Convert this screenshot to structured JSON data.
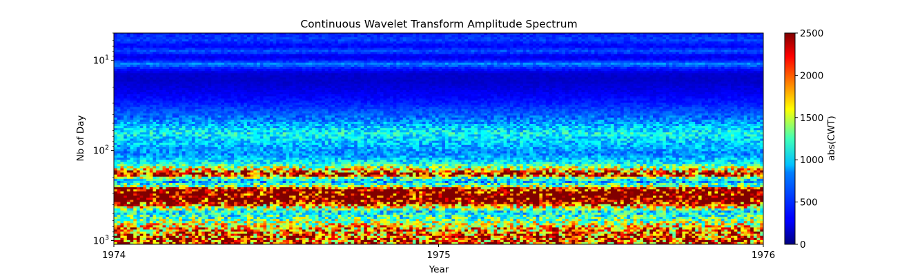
{
  "chart_data": {
    "type": "heatmap",
    "title": "Continuous Wavelet Transform Amplitude Spectrum",
    "xlabel": "Year",
    "ylabel": "Nb of Day",
    "x_ticks": [
      "1974",
      "1975",
      "1976"
    ],
    "xlim": [
      1974,
      1976
    ],
    "y_scale": "log",
    "y_inverted": true,
    "y_ticks": [
      {
        "value": 10,
        "base": "10",
        "exp": "1"
      },
      {
        "value": 100,
        "base": "10",
        "exp": "2"
      },
      {
        "value": 1000,
        "base": "10",
        "exp": "3"
      }
    ],
    "ylim": [
      5,
      1100
    ],
    "colormap": "jet",
    "colorbar": {
      "label": "abs(CWT)",
      "range": [
        0,
        2500
      ],
      "ticks": [
        "0",
        "500",
        "1000",
        "1500",
        "2000",
        "2500"
      ]
    },
    "period_profile": [
      {
        "period": 5,
        "amp": 380
      },
      {
        "period": 6,
        "amp": 470
      },
      {
        "period": 7,
        "amp": 300
      },
      {
        "period": 8,
        "amp": 520
      },
      {
        "period": 9,
        "amp": 260
      },
      {
        "period": 10,
        "amp": 340
      },
      {
        "period": 11,
        "amp": 650
      },
      {
        "period": 12,
        "amp": 420
      },
      {
        "period": 14,
        "amp": 200
      },
      {
        "period": 17,
        "amp": 180
      },
      {
        "period": 20,
        "amp": 230
      },
      {
        "period": 25,
        "amp": 300
      },
      {
        "period": 30,
        "amp": 380
      },
      {
        "period": 38,
        "amp": 520
      },
      {
        "period": 45,
        "amp": 600
      },
      {
        "period": 55,
        "amp": 800
      },
      {
        "period": 65,
        "amp": 950
      },
      {
        "period": 75,
        "amp": 850
      },
      {
        "period": 90,
        "amp": 750
      },
      {
        "period": 110,
        "amp": 650
      },
      {
        "period": 140,
        "amp": 950
      },
      {
        "period": 165,
        "amp": 1700
      },
      {
        "period": 185,
        "amp": 2400
      },
      {
        "period": 200,
        "amp": 1300
      },
      {
        "period": 220,
        "amp": 700
      },
      {
        "period": 250,
        "amp": 1300
      },
      {
        "period": 270,
        "amp": 2600
      },
      {
        "period": 300,
        "amp": 2800
      },
      {
        "period": 360,
        "amp": 2800
      },
      {
        "period": 420,
        "amp": 1700
      },
      {
        "period": 480,
        "amp": 900
      },
      {
        "period": 550,
        "amp": 1100
      },
      {
        "period": 640,
        "amp": 1400
      },
      {
        "period": 740,
        "amp": 1800
      },
      {
        "period": 850,
        "amp": 2000
      },
      {
        "period": 1000,
        "amp": 2100
      },
      {
        "period": 1100,
        "amp": 2100
      }
    ]
  }
}
